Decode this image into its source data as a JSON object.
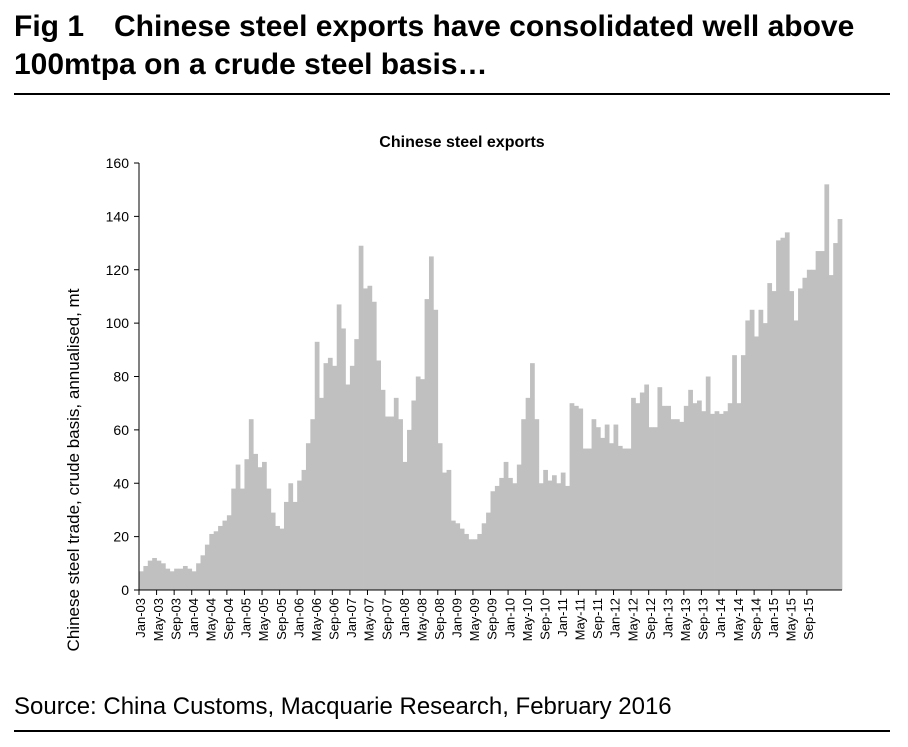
{
  "figure": {
    "label": "Fig 1",
    "title": "Chinese steel exports have consolidated well above 100mtpa on a crude steel basis…",
    "source": "Source: China Customs, Macquarie Research, February 2016"
  },
  "chart_data": {
    "type": "bar",
    "title": "Chinese steel exports",
    "xlabel": "",
    "ylabel": "Chinese steel trade, crude basis, annualised, mt",
    "ylim": [
      0,
      160
    ],
    "yticks": [
      0,
      20,
      40,
      60,
      80,
      100,
      120,
      140,
      160
    ],
    "grid": false,
    "bar_color": "#c0c0c0",
    "start": "Jan-03",
    "tick_labels": [
      "Jan-03",
      "May-03",
      "Sep-03",
      "Jan-04",
      "May-04",
      "Sep-04",
      "Jan-05",
      "May-05",
      "Sep-05",
      "Jan-06",
      "May-06",
      "Sep-06",
      "Jan-07",
      "May-07",
      "Sep-07",
      "Jan-08",
      "May-08",
      "Sep-08",
      "Jan-09",
      "May-09",
      "Sep-09",
      "Jan-10",
      "May-10",
      "Sep-10",
      "Jan-11",
      "May-11",
      "Sep-11",
      "Jan-12",
      "May-12",
      "Sep-12",
      "Jan-13",
      "May-13",
      "Sep-13",
      "Jan-14",
      "May-14",
      "Sep-14",
      "Jan-15",
      "May-15",
      "Sep-15"
    ],
    "values": [
      7,
      9,
      11,
      12,
      11,
      10,
      8,
      7,
      8,
      8,
      9,
      8,
      7,
      10,
      13,
      17,
      21,
      22,
      24,
      26,
      28,
      38,
      47,
      38,
      49,
      64,
      51,
      46,
      48,
      38,
      29,
      24,
      23,
      33,
      40,
      33,
      41,
      45,
      55,
      64,
      93,
      72,
      85,
      87,
      84,
      107,
      98,
      77,
      84,
      94,
      129,
      113,
      114,
      108,
      86,
      75,
      65,
      65,
      72,
      64,
      48,
      60,
      71,
      80,
      79,
      109,
      125,
      105,
      55,
      44,
      45,
      26,
      25,
      23,
      21,
      19,
      19,
      21,
      25,
      29,
      37,
      39,
      42,
      48,
      42,
      40,
      47,
      64,
      72,
      85,
      64,
      40,
      45,
      41,
      43,
      40,
      44,
      39,
      70,
      69,
      68,
      53,
      53,
      64,
      61,
      57,
      62,
      55,
      62,
      54,
      53,
      53,
      72,
      70,
      74,
      77,
      61,
      61,
      76,
      69,
      69,
      64,
      64,
      63,
      69,
      75,
      70,
      71,
      67,
      80,
      66,
      67,
      66,
      67,
      70,
      88,
      70,
      88,
      101,
      105,
      95,
      105,
      100,
      115,
      112,
      131,
      132,
      134,
      112,
      101,
      113,
      117,
      120,
      120,
      127,
      127,
      152,
      118,
      130,
      139
    ]
  }
}
